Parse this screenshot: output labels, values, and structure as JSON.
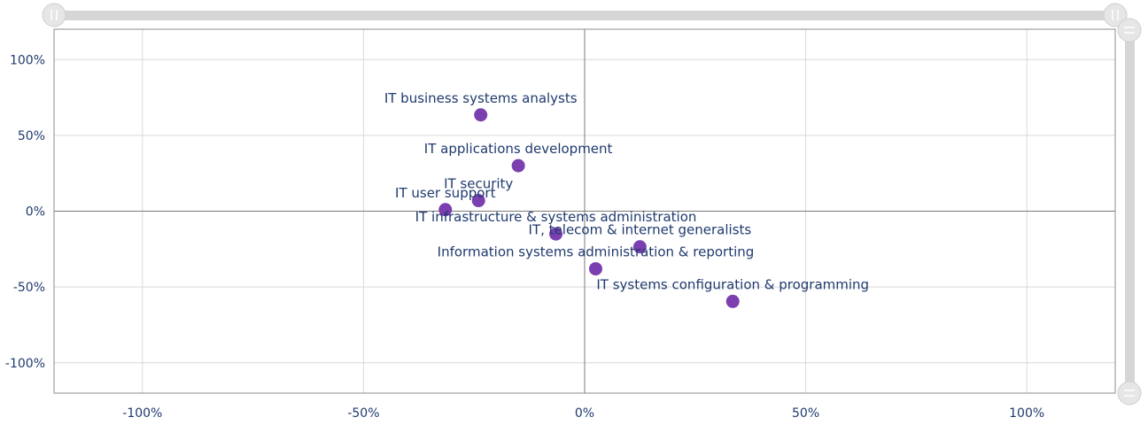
{
  "chart_data": {
    "type": "scatter",
    "title": "",
    "xlabel": "",
    "ylabel": "",
    "xlim": [
      -1.2,
      1.2
    ],
    "ylim": [
      -1.2,
      1.2
    ],
    "x_ticks": [
      {
        "value": -1.0,
        "label": "-100%"
      },
      {
        "value": -0.5,
        "label": "-50%"
      },
      {
        "value": 0.0,
        "label": "0%"
      },
      {
        "value": 0.5,
        "label": "50%"
      },
      {
        "value": 1.0,
        "label": "100%"
      }
    ],
    "y_ticks": [
      {
        "value": 1.0,
        "label": "100%"
      },
      {
        "value": 0.5,
        "label": "50%"
      },
      {
        "value": 0.0,
        "label": "0%"
      },
      {
        "value": -0.5,
        "label": "-50%"
      },
      {
        "value": -1.0,
        "label": "-100%"
      }
    ],
    "grid": true,
    "marker_color": "#7b3fb0",
    "points": [
      {
        "label": "IT business systems analysts",
        "x": -0.235,
        "y": 0.635
      },
      {
        "label": "IT applications development",
        "x": -0.15,
        "y": 0.3
      },
      {
        "label": "IT security",
        "x": -0.24,
        "y": 0.07
      },
      {
        "label": "IT user support",
        "x": -0.315,
        "y": 0.01
      },
      {
        "label": "IT infrastructure & systems administration",
        "x": -0.065,
        "y": -0.15
      },
      {
        "label": "IT, telecom & internet generalists",
        "x": 0.125,
        "y": -0.235
      },
      {
        "label": "Information systems administration & reporting",
        "x": 0.025,
        "y": -0.38
      },
      {
        "label": "IT systems configuration & programming",
        "x": 0.335,
        "y": -0.595
      }
    ]
  },
  "scrollbars": {
    "horizontal": {
      "range_start": 0.0,
      "range_end": 1.0
    },
    "vertical": {
      "range_start": 0.0,
      "range_end": 1.0
    }
  }
}
